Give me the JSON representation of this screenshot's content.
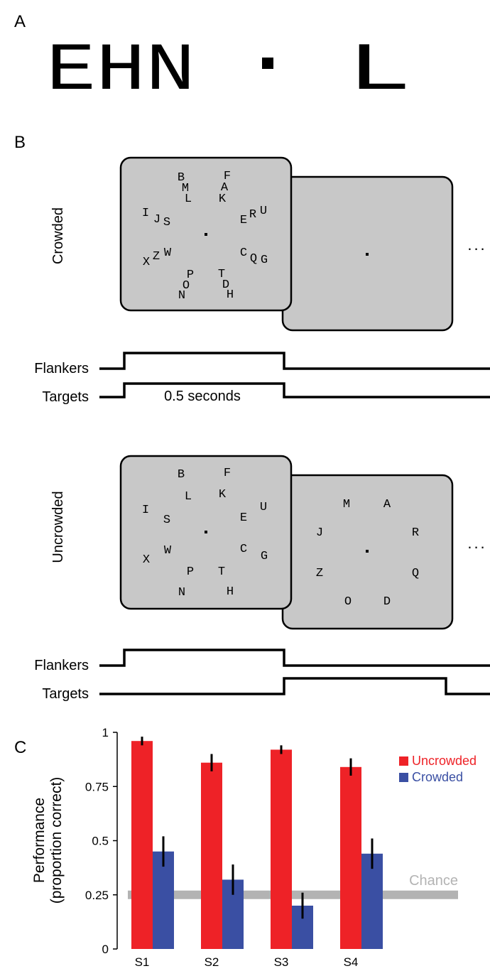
{
  "panel_a": {
    "label": "A",
    "flankers": "EHN",
    "target": "L"
  },
  "panel_b": {
    "label": "B",
    "crowded": {
      "label": "Crowded",
      "front_letters": [
        "B",
        "M",
        "L",
        "F",
        "A",
        "K",
        "I",
        "J",
        "S",
        "E",
        "R",
        "U",
        "X",
        "Z",
        "W",
        "C",
        "Q",
        "G",
        "P",
        "O",
        "N",
        "T",
        "D",
        "H"
      ],
      "continuation": "...",
      "flankers_label": "Flankers",
      "targets_label": "Targets",
      "duration": "0.5 seconds"
    },
    "uncrowded": {
      "label": "Uncrowded",
      "front_letters": [
        "B",
        "F",
        "L",
        "K",
        "I",
        "S",
        "U",
        "E",
        "X",
        "W",
        "C",
        "G",
        "P",
        "T",
        "N",
        "H"
      ],
      "back_letters": [
        "M",
        "A",
        "J",
        "R",
        "Z",
        "Q",
        "O",
        "D"
      ],
      "continuation": "...",
      "flankers_label": "Flankers",
      "targets_label": "Targets"
    }
  },
  "panel_c": {
    "label": "C"
  },
  "chart_data": {
    "type": "bar",
    "y_label": [
      "Performance",
      "(proportion correct)"
    ],
    "categories": [
      "S1",
      "S2",
      "S3",
      "S4"
    ],
    "series": [
      {
        "name": "Uncrowded",
        "color": "#ee2227",
        "values": [
          0.96,
          0.86,
          0.92,
          0.84
        ],
        "errors": [
          0.02,
          0.04,
          0.02,
          0.04
        ]
      },
      {
        "name": "Crowded",
        "color": "#3a4fa3",
        "values": [
          0.45,
          0.32,
          0.2,
          0.44
        ],
        "errors": [
          0.07,
          0.07,
          0.06,
          0.07
        ]
      }
    ],
    "ylim": [
      0,
      1
    ],
    "yticks": [
      0,
      0.25,
      0.5,
      0.75,
      1
    ],
    "chance": {
      "label": "Chance",
      "value": 0.25,
      "color": "#b3b3b3"
    }
  }
}
